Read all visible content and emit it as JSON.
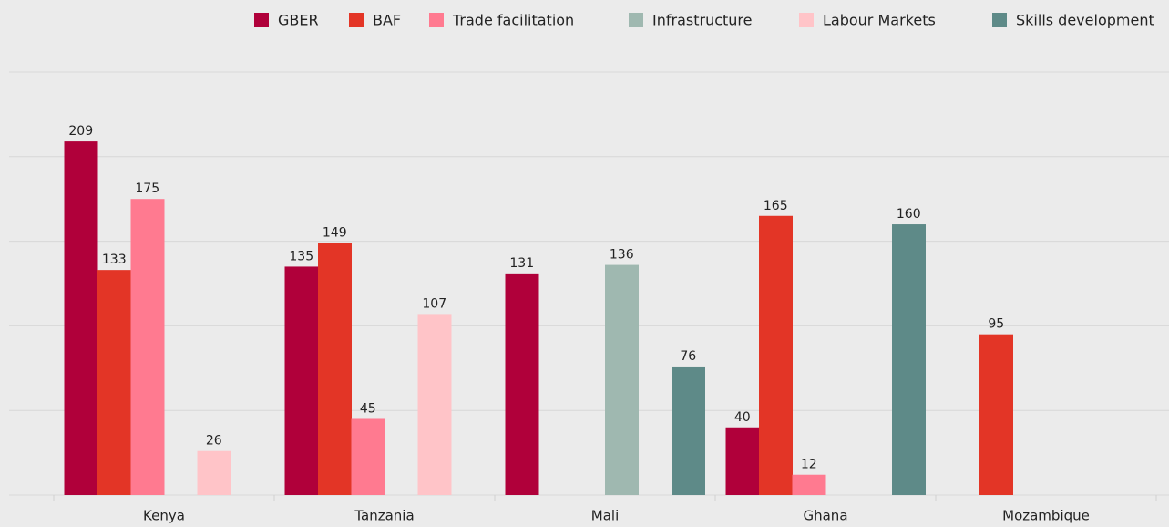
{
  "chart_data": {
    "type": "bar",
    "categories": [
      "Kenya",
      "Tanzania",
      "Mali",
      "Ghana",
      "Mozambique"
    ],
    "series": [
      {
        "name": "GBER",
        "color": "#b0003a",
        "values": [
          209,
          135,
          131,
          40,
          null
        ]
      },
      {
        "name": "BAF",
        "color": "#e33526",
        "values": [
          133,
          149,
          null,
          165,
          95
        ]
      },
      {
        "name": "Trade facilitation",
        "color": "#ff7a90",
        "values": [
          175,
          45,
          null,
          12,
          null
        ]
      },
      {
        "name": "Infrastructure",
        "color": "#9fb8b0",
        "values": [
          null,
          null,
          136,
          null,
          null
        ]
      },
      {
        "name": "Labour Markets",
        "color": "#ffc4c8",
        "values": [
          26,
          107,
          null,
          null,
          null
        ]
      },
      {
        "name": "Skills development",
        "color": "#5e8a88",
        "values": [
          null,
          null,
          76,
          160,
          null
        ]
      }
    ],
    "ylim": [
      0,
      250
    ],
    "yticks": [
      0,
      50,
      100,
      150,
      200,
      250
    ],
    "grid": true,
    "show_ytick_labels": false,
    "legend": "top-right"
  }
}
